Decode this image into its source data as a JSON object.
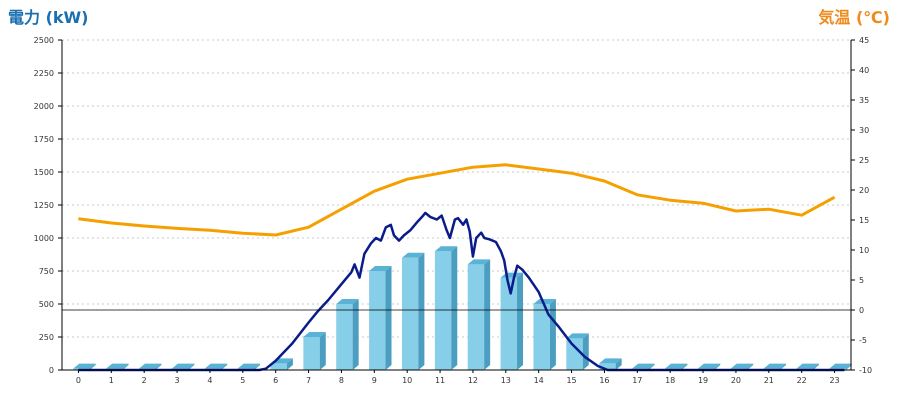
{
  "titles": {
    "left": "電力 (kW)",
    "right": "気温 (℃)"
  },
  "colors": {
    "left_title": "#1a6fb0",
    "right_title": "#f08a1c",
    "bar_front": "#87cee8",
    "bar_side": "#4b9ec0",
    "bar_top": "#5ab2d6",
    "power_line": "#0a1c8a",
    "temp_line": "#f5a000",
    "grid": "#c8c8c8",
    "axis": "#000000"
  },
  "chart_data": {
    "type": "bar+line",
    "x": [
      "0",
      "1",
      "2",
      "3",
      "4",
      "5",
      "6",
      "7",
      "8",
      "9",
      "10",
      "11",
      "12",
      "13",
      "14",
      "15",
      "16",
      "17",
      "18",
      "19",
      "20",
      "21",
      "22",
      "23"
    ],
    "y_left": {
      "label": "電力 (kW)",
      "range": [
        0,
        2500
      ],
      "ticks": [
        "0",
        "250",
        "500",
        "750",
        "1000",
        "1250",
        "1500",
        "1750",
        "2000",
        "2250",
        "2500"
      ]
    },
    "y_right": {
      "label": "気温 (℃)",
      "range": [
        -10,
        45
      ],
      "ticks": [
        "-10",
        "-5",
        "0",
        "5",
        "10",
        "15",
        "20",
        "25",
        "30",
        "35",
        "40",
        "45"
      ]
    },
    "grid": "horizontal dotted",
    "bars": [
      0,
      0,
      0,
      0,
      0,
      0,
      50,
      250,
      500,
      750,
      850,
      900,
      800,
      700,
      500,
      240,
      50,
      0,
      0,
      0,
      0,
      0,
      0,
      0
    ],
    "temperature": [
      [
        0,
        15.2
      ],
      [
        1,
        14.5
      ],
      [
        2,
        14.0
      ],
      [
        3,
        13.6
      ],
      [
        4,
        13.3
      ],
      [
        5,
        12.8
      ],
      [
        6,
        12.5
      ],
      [
        7,
        13.8
      ],
      [
        8,
        16.8
      ],
      [
        9,
        19.8
      ],
      [
        10,
        21.8
      ],
      [
        11,
        22.8
      ],
      [
        12,
        23.8
      ],
      [
        13,
        24.2
      ],
      [
        14,
        23.5
      ],
      [
        15,
        22.8
      ],
      [
        16,
        21.5
      ],
      [
        17,
        19.2
      ],
      [
        18,
        18.3
      ],
      [
        19,
        17.8
      ],
      [
        20,
        16.5
      ],
      [
        21,
        16.8
      ],
      [
        22,
        15.8
      ],
      [
        23,
        18.8
      ]
    ],
    "power_line": [
      [
        0,
        0
      ],
      [
        5.5,
        0
      ],
      [
        5.7,
        10
      ],
      [
        6,
        70
      ],
      [
        6.5,
        200
      ],
      [
        7,
        360
      ],
      [
        7.3,
        450
      ],
      [
        7.6,
        530
      ],
      [
        8,
        650
      ],
      [
        8.3,
        740
      ],
      [
        8.4,
        800
      ],
      [
        8.55,
        700
      ],
      [
        8.7,
        880
      ],
      [
        8.9,
        960
      ],
      [
        9.05,
        1000
      ],
      [
        9.2,
        980
      ],
      [
        9.35,
        1080
      ],
      [
        9.5,
        1100
      ],
      [
        9.6,
        1020
      ],
      [
        9.75,
        980
      ],
      [
        9.9,
        1020
      ],
      [
        10.1,
        1060
      ],
      [
        10.3,
        1120
      ],
      [
        10.45,
        1160
      ],
      [
        10.55,
        1190
      ],
      [
        10.7,
        1160
      ],
      [
        10.9,
        1140
      ],
      [
        11.05,
        1170
      ],
      [
        11.2,
        1060
      ],
      [
        11.3,
        1000
      ],
      [
        11.45,
        1140
      ],
      [
        11.55,
        1150
      ],
      [
        11.7,
        1100
      ],
      [
        11.8,
        1140
      ],
      [
        11.9,
        1050
      ],
      [
        12.0,
        860
      ],
      [
        12.1,
        1000
      ],
      [
        12.25,
        1040
      ],
      [
        12.35,
        1000
      ],
      [
        12.5,
        990
      ],
      [
        12.7,
        970
      ],
      [
        12.85,
        900
      ],
      [
        12.95,
        830
      ],
      [
        13.05,
        680
      ],
      [
        13.15,
        580
      ],
      [
        13.25,
        700
      ],
      [
        13.35,
        790
      ],
      [
        13.5,
        760
      ],
      [
        13.7,
        700
      ],
      [
        14,
        590
      ],
      [
        14.3,
        420
      ],
      [
        14.6,
        330
      ],
      [
        15,
        200
      ],
      [
        15.4,
        100
      ],
      [
        15.8,
        30
      ],
      [
        16.1,
        0
      ],
      [
        23.3,
        0
      ]
    ]
  }
}
